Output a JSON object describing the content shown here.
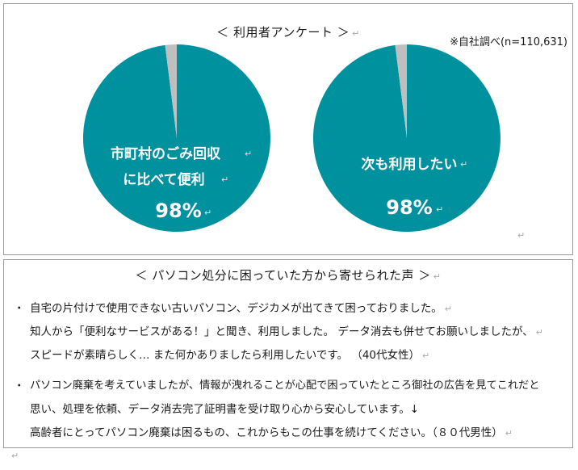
{
  "survey": {
    "title": "＜ 利用者アンケート ＞",
    "note": "※自社調べ(n=110,631)",
    "pies": [
      {
        "lines": [
          "市町村のごみ回収",
          "に比べて便利"
        ],
        "percent_label": "98%",
        "value": 98,
        "color_main": "#00919f",
        "color_rest": "#bfbfbf"
      },
      {
        "lines": [
          "次も利用したい"
        ],
        "percent_label": "98%",
        "value": 98,
        "color_main": "#00919f",
        "color_rest": "#bfbfbf"
      }
    ]
  },
  "voices": {
    "title": "＜ パソコン処分に困っていた方から寄せられた声 ＞",
    "bullet": "・",
    "comments": [
      {
        "lines": [
          "自宅の片付けで使用できない古いパソコン、デジカメが出てきて困っておりました。",
          "知人から「便利なサービスがある！」と聞き、利用しました。 データ消去も併せてお願いしましたが、",
          "スピードが素晴らしく… また何かありましたら利用したいです。 （40代女性）"
        ]
      },
      {
        "lines": [
          "パソコン廃棄を考えていましたが、情報が洩れることが心配で困っていたところ御社の広告を見てこれだと",
          "思い、処理を依頼、データ消去完了証明書を受け取り心から安心しています。↓",
          "高齢者にとってパソコン廃棄は困るもの、これからもこの仕事を続けてください。（８０代男性）"
        ]
      }
    ]
  }
}
